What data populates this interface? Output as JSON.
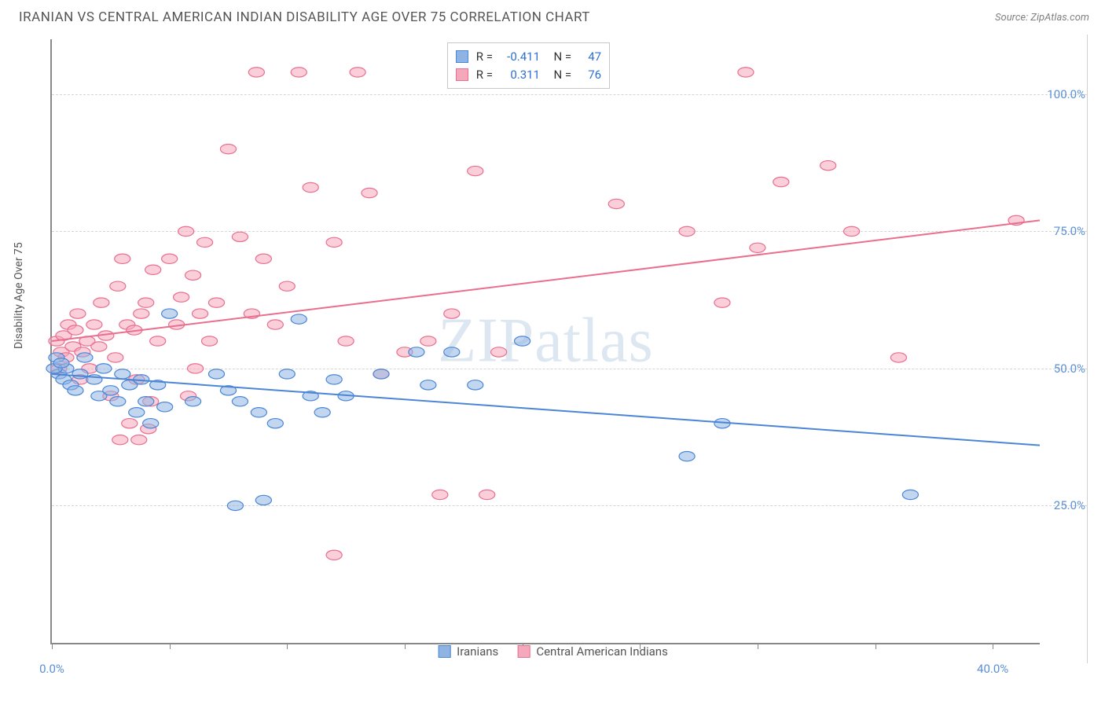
{
  "header": {
    "title": "IRANIAN VS CENTRAL AMERICAN INDIAN DISABILITY AGE OVER 75 CORRELATION CHART",
    "source": "Source: ZipAtlas.com"
  },
  "watermark": "ZIPatlas",
  "y_axis_label": "Disability Age Over 75",
  "chart": {
    "type": "scatter",
    "background_color": "#ffffff",
    "grid_color": "#d5d5d5",
    "axis_color": "#888888",
    "tick_label_color": "#5b8fd6",
    "xlim": [
      0,
      42
    ],
    "ylim": [
      0,
      110
    ],
    "y_ticks": [
      25,
      50,
      75,
      100
    ],
    "y_tick_labels": [
      "25.0%",
      "50.0%",
      "75.0%",
      "100.0%"
    ],
    "x_ticks": [
      0,
      5,
      10,
      15,
      20,
      25,
      30,
      35,
      40
    ],
    "x_tick_labels": {
      "0": "0.0%",
      "40": "40.0%"
    },
    "marker_radius": 8,
    "marker_opacity": 0.55,
    "line_width": 2,
    "series": [
      {
        "name": "Iranians",
        "color_fill": "#8fb4e3",
        "color_stroke": "#4b86d6",
        "R": "-0.411",
        "N": "47",
        "trend": {
          "x1": 0,
          "y1": 49,
          "x2": 42,
          "y2": 36
        },
        "points": [
          [
            0.2,
            52
          ],
          [
            0.3,
            49
          ],
          [
            0.5,
            48
          ],
          [
            0.6,
            50
          ],
          [
            0.8,
            47
          ],
          [
            1.0,
            46
          ],
          [
            1.2,
            49
          ],
          [
            1.4,
            52
          ],
          [
            1.8,
            48
          ],
          [
            2.0,
            45
          ],
          [
            2.2,
            50
          ],
          [
            2.5,
            46
          ],
          [
            2.8,
            44
          ],
          [
            3.0,
            49
          ],
          [
            3.3,
            47
          ],
          [
            3.6,
            42
          ],
          [
            3.8,
            48
          ],
          [
            4.0,
            44
          ],
          [
            4.2,
            40
          ],
          [
            4.5,
            47
          ],
          [
            4.8,
            43
          ],
          [
            5.0,
            60
          ],
          [
            6.0,
            44
          ],
          [
            7.0,
            49
          ],
          [
            7.5,
            46
          ],
          [
            8.0,
            44
          ],
          [
            8.8,
            42
          ],
          [
            9.5,
            40
          ],
          [
            10.0,
            49
          ],
          [
            10.5,
            59
          ],
          [
            11.0,
            45
          ],
          [
            11.5,
            42
          ],
          [
            12.0,
            48
          ],
          [
            12.5,
            45
          ],
          [
            14.0,
            49
          ],
          [
            15.5,
            53
          ],
          [
            16.0,
            47
          ],
          [
            17.0,
            53
          ],
          [
            18.0,
            47
          ],
          [
            20.0,
            55
          ],
          [
            9.0,
            26
          ],
          [
            7.8,
            25
          ],
          [
            28.5,
            40
          ],
          [
            27.0,
            34
          ],
          [
            36.5,
            27
          ],
          [
            0.1,
            50
          ],
          [
            0.4,
            51
          ]
        ]
      },
      {
        "name": "Central American Indians",
        "color_fill": "#f5a8bb",
        "color_stroke": "#ea6e8e",
        "R": "0.311",
        "N": "76",
        "trend": {
          "x1": 0,
          "y1": 55,
          "x2": 42,
          "y2": 77
        },
        "points": [
          [
            0.2,
            55
          ],
          [
            0.4,
            53
          ],
          [
            0.5,
            56
          ],
          [
            0.6,
            52
          ],
          [
            0.7,
            58
          ],
          [
            0.9,
            54
          ],
          [
            1.0,
            57
          ],
          [
            1.1,
            60
          ],
          [
            1.3,
            53
          ],
          [
            1.5,
            55
          ],
          [
            1.6,
            50
          ],
          [
            1.8,
            58
          ],
          [
            2.0,
            54
          ],
          [
            2.1,
            62
          ],
          [
            2.3,
            56
          ],
          [
            2.5,
            45
          ],
          [
            2.7,
            52
          ],
          [
            2.8,
            65
          ],
          [
            3.0,
            70
          ],
          [
            3.2,
            58
          ],
          [
            3.3,
            40
          ],
          [
            3.5,
            57
          ],
          [
            3.6,
            48
          ],
          [
            3.8,
            60
          ],
          [
            4.0,
            62
          ],
          [
            4.2,
            44
          ],
          [
            4.3,
            68
          ],
          [
            4.5,
            55
          ],
          [
            5.0,
            70
          ],
          [
            5.3,
            58
          ],
          [
            5.5,
            63
          ],
          [
            5.7,
            75
          ],
          [
            6.0,
            67
          ],
          [
            6.3,
            60
          ],
          [
            6.5,
            73
          ],
          [
            6.7,
            55
          ],
          [
            7.0,
            62
          ],
          [
            7.5,
            90
          ],
          [
            8.0,
            74
          ],
          [
            8.5,
            60
          ],
          [
            9.0,
            70
          ],
          [
            9.5,
            58
          ],
          [
            10.0,
            65
          ],
          [
            10.5,
            104
          ],
          [
            11.0,
            83
          ],
          [
            12.0,
            73
          ],
          [
            12.5,
            55
          ],
          [
            13.0,
            104
          ],
          [
            13.5,
            82
          ],
          [
            14.0,
            49
          ],
          [
            15.0,
            53
          ],
          [
            16.0,
            55
          ],
          [
            17.0,
            60
          ],
          [
            18.0,
            86
          ],
          [
            18.5,
            27
          ],
          [
            16.5,
            27
          ],
          [
            12.0,
            16
          ],
          [
            24.0,
            80
          ],
          [
            27.0,
            75
          ],
          [
            28.5,
            62
          ],
          [
            30.0,
            72
          ],
          [
            31.0,
            84
          ],
          [
            33.0,
            87
          ],
          [
            34.0,
            75
          ],
          [
            36.0,
            52
          ],
          [
            41.0,
            77
          ],
          [
            2.9,
            37
          ],
          [
            3.7,
            37
          ],
          [
            4.1,
            39
          ],
          [
            1.2,
            48
          ],
          [
            0.3,
            50
          ],
          [
            8.7,
            104
          ],
          [
            29.5,
            104
          ],
          [
            5.8,
            45
          ],
          [
            6.1,
            50
          ],
          [
            19.0,
            53
          ]
        ]
      }
    ]
  },
  "legend": {
    "items": [
      "Iranians",
      "Central American Indians"
    ]
  }
}
